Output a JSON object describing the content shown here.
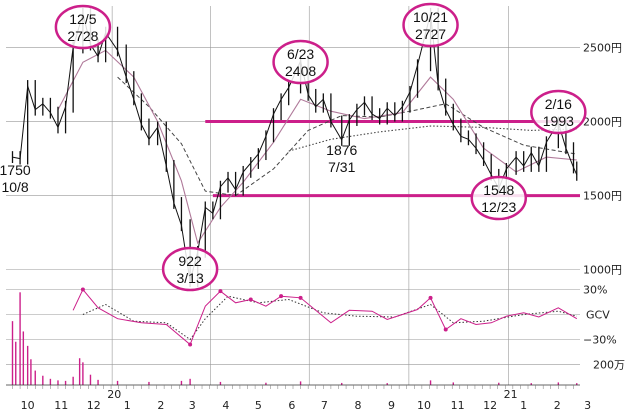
{
  "chart_data": {
    "type": "line",
    "title": "",
    "subtitle": "",
    "colors": {
      "accent": "#cc1f8a",
      "price": "#111111",
      "ma_short": "#b07a9a",
      "ma_mid": "#444444",
      "ma_long": "#444444",
      "grid": "#999999"
    },
    "price_panel": {
      "y_ticks": [
        1000,
        1500,
        2000,
        2500
      ],
      "y_tick_labels": [
        "1000円",
        "1500円",
        "2000円",
        "2500円"
      ],
      "ylim": [
        930,
        2780
      ],
      "horizontal_levels": [
        {
          "name": "resistance",
          "value": 2000
        },
        {
          "name": "support",
          "value": 1500
        }
      ],
      "annotations": [
        {
          "id": "ann-1205",
          "date_label": "12/5",
          "value_label": "2728",
          "date": "2019-12-05",
          "value": 2728,
          "circled": true
        },
        {
          "id": "ann-0623",
          "date_label": "6/23",
          "value_label": "2408",
          "date": "2020-06-23",
          "value": 2408,
          "circled": true
        },
        {
          "id": "ann-1021",
          "date_label": "10/21",
          "value_label": "2727",
          "date": "2020-10-21",
          "value": 2727,
          "circled": true
        },
        {
          "id": "ann-0216",
          "date_label": "2/16",
          "value_label": "1993",
          "date": "2021-02-16",
          "value": 1993,
          "circled": true
        },
        {
          "id": "ann-0313",
          "date_label": "922",
          "value_label": "3/13",
          "date": "2020-03-13",
          "value": 922,
          "circled": true
        },
        {
          "id": "ann-1223",
          "date_label": "1548",
          "value_label": "12/23",
          "date": "2020-12-23",
          "value": 1548,
          "circled": true
        },
        {
          "id": "ann-1008",
          "date_label": "1750",
          "value_label": "10/8",
          "date": "2019-10-08",
          "value": 1750,
          "circled": false
        },
        {
          "id": "ann-0731",
          "date_label": "1876",
          "value_label": "7/31",
          "date": "2020-07-31",
          "value": 1876,
          "circled": false
        }
      ],
      "price_series": [
        [
          "2019-10-01",
          1760
        ],
        [
          "2019-10-08",
          1750
        ],
        [
          "2019-10-15",
          2240
        ],
        [
          "2019-10-22",
          2080
        ],
        [
          "2019-10-29",
          2120
        ],
        [
          "2019-11-05",
          2060
        ],
        [
          "2019-11-12",
          1960
        ],
        [
          "2019-11-19",
          2100
        ],
        [
          "2019-11-26",
          2500
        ],
        [
          "2019-12-05",
          2728
        ],
        [
          "2019-12-12",
          2520
        ],
        [
          "2019-12-19",
          2440
        ],
        [
          "2019-12-26",
          2600
        ],
        [
          "2020-01-06",
          2480
        ],
        [
          "2020-01-14",
          2300
        ],
        [
          "2020-01-21",
          2150
        ],
        [
          "2020-01-28",
          1980
        ],
        [
          "2020-02-04",
          1880
        ],
        [
          "2020-02-12",
          1960
        ],
        [
          "2020-02-20",
          1700
        ],
        [
          "2020-02-27",
          1450
        ],
        [
          "2020-03-05",
          1300
        ],
        [
          "2020-03-13",
          922
        ],
        [
          "2020-03-20",
          1120
        ],
        [
          "2020-03-27",
          1420
        ],
        [
          "2020-04-03",
          1380
        ],
        [
          "2020-04-10",
          1560
        ],
        [
          "2020-04-17",
          1620
        ],
        [
          "2020-04-24",
          1540
        ],
        [
          "2020-05-01",
          1660
        ],
        [
          "2020-05-08",
          1720
        ],
        [
          "2020-05-15",
          1780
        ],
        [
          "2020-05-22",
          1900
        ],
        [
          "2020-05-29",
          2050
        ],
        [
          "2020-06-05",
          2150
        ],
        [
          "2020-06-12",
          2230
        ],
        [
          "2020-06-23",
          2408
        ],
        [
          "2020-06-30",
          2180
        ],
        [
          "2020-07-07",
          2100
        ],
        [
          "2020-07-14",
          2150
        ],
        [
          "2020-07-21",
          2000
        ],
        [
          "2020-07-31",
          1876
        ],
        [
          "2020-08-07",
          2010
        ],
        [
          "2020-08-14",
          2080
        ],
        [
          "2020-08-21",
          2130
        ],
        [
          "2020-08-28",
          2050
        ],
        [
          "2020-09-04",
          2020
        ],
        [
          "2020-09-11",
          2090
        ],
        [
          "2020-09-18",
          2040
        ],
        [
          "2020-09-25",
          2100
        ],
        [
          "2020-10-02",
          2200
        ],
        [
          "2020-10-09",
          2380
        ],
        [
          "2020-10-21",
          2727
        ],
        [
          "2020-10-28",
          2250
        ],
        [
          "2020-11-04",
          2080
        ],
        [
          "2020-11-11",
          1980
        ],
        [
          "2020-11-18",
          1900
        ],
        [
          "2020-11-25",
          1880
        ],
        [
          "2020-12-02",
          1820
        ],
        [
          "2020-12-09",
          1740
        ],
        [
          "2020-12-16",
          1640
        ],
        [
          "2020-12-23",
          1548
        ],
        [
          "2020-12-30",
          1680
        ],
        [
          "2021-01-08",
          1760
        ],
        [
          "2021-01-15",
          1700
        ],
        [
          "2021-01-22",
          1790
        ],
        [
          "2021-01-29",
          1700
        ],
        [
          "2021-02-05",
          1860
        ],
        [
          "2021-02-16",
          1993
        ],
        [
          "2021-02-23",
          1820
        ],
        [
          "2021-03-02",
          1690
        ],
        [
          "2021-03-05",
          1640
        ]
      ],
      "ma_short": [
        [
          "2019-11-12",
          2080
        ],
        [
          "2019-12-05",
          2400
        ],
        [
          "2019-12-26",
          2480
        ],
        [
          "2020-01-21",
          2300
        ],
        [
          "2020-02-12",
          2000
        ],
        [
          "2020-03-05",
          1600
        ],
        [
          "2020-03-20",
          1180
        ],
        [
          "2020-04-10",
          1420
        ],
        [
          "2020-05-01",
          1590
        ],
        [
          "2020-05-29",
          1860
        ],
        [
          "2020-06-23",
          2150
        ],
        [
          "2020-07-21",
          2070
        ],
        [
          "2020-08-21",
          2020
        ],
        [
          "2020-09-25",
          2060
        ],
        [
          "2020-10-21",
          2300
        ],
        [
          "2020-11-11",
          2150
        ],
        [
          "2020-12-09",
          1820
        ],
        [
          "2021-01-08",
          1660
        ],
        [
          "2021-02-05",
          1760
        ],
        [
          "2021-03-05",
          1740
        ]
      ],
      "ma_mid": [
        [
          "2020-01-06",
          2300
        ],
        [
          "2020-02-04",
          2100
        ],
        [
          "2020-03-05",
          1850
        ],
        [
          "2020-03-27",
          1530
        ],
        [
          "2020-04-24",
          1500
        ],
        [
          "2020-05-29",
          1680
        ],
        [
          "2020-06-30",
          1940
        ],
        [
          "2020-07-31",
          2040
        ],
        [
          "2020-09-04",
          2030
        ],
        [
          "2020-10-09",
          2080
        ],
        [
          "2020-11-04",
          2120
        ],
        [
          "2020-12-09",
          1960
        ],
        [
          "2021-01-15",
          1840
        ],
        [
          "2021-03-05",
          1780
        ]
      ],
      "ma_long": [
        [
          "2020-06-12",
          1800
        ],
        [
          "2020-07-21",
          1880
        ],
        [
          "2020-09-04",
          1930
        ],
        [
          "2020-10-21",
          1970
        ],
        [
          "2020-12-09",
          1960
        ],
        [
          "2021-01-22",
          1940
        ],
        [
          "2021-03-05",
          1950
        ]
      ]
    },
    "gcv_panel": {
      "label": "GCV",
      "y_ticks": [
        30,
        0,
        -30
      ],
      "y_tick_labels": [
        "30%",
        "GCV",
        "−30%"
      ],
      "ylim": [
        -45,
        45
      ],
      "gcv_series": [
        [
          "2019-11-26",
          5
        ],
        [
          "2019-12-05",
          30
        ],
        [
          "2019-12-19",
          8
        ],
        [
          "2020-01-06",
          -5
        ],
        [
          "2020-01-28",
          -10
        ],
        [
          "2020-02-20",
          -12
        ],
        [
          "2020-03-13",
          -36
        ],
        [
          "2020-03-27",
          10
        ],
        [
          "2020-04-10",
          28
        ],
        [
          "2020-04-24",
          14
        ],
        [
          "2020-05-08",
          18
        ],
        [
          "2020-05-22",
          10
        ],
        [
          "2020-06-05",
          22
        ],
        [
          "2020-06-23",
          20
        ],
        [
          "2020-07-07",
          5
        ],
        [
          "2020-07-21",
          -10
        ],
        [
          "2020-08-07",
          5
        ],
        [
          "2020-08-28",
          4
        ],
        [
          "2020-09-11",
          -6
        ],
        [
          "2020-09-25",
          0
        ],
        [
          "2020-10-09",
          6
        ],
        [
          "2020-10-21",
          20
        ],
        [
          "2020-11-04",
          -18
        ],
        [
          "2020-11-18",
          -5
        ],
        [
          "2020-12-02",
          -12
        ],
        [
          "2020-12-16",
          -10
        ],
        [
          "2020-12-30",
          -2
        ],
        [
          "2021-01-15",
          2
        ],
        [
          "2021-01-29",
          -3
        ],
        [
          "2021-02-16",
          8
        ],
        [
          "2021-03-05",
          -5
        ]
      ],
      "gcv_signal": [
        [
          "2019-12-05",
          0
        ],
        [
          "2019-12-26",
          12
        ],
        [
          "2020-01-21",
          -8
        ],
        [
          "2020-02-20",
          -10
        ],
        [
          "2020-03-13",
          -30
        ],
        [
          "2020-03-27",
          -5
        ],
        [
          "2020-04-17",
          22
        ],
        [
          "2020-05-15",
          14
        ],
        [
          "2020-06-12",
          18
        ],
        [
          "2020-07-14",
          2
        ],
        [
          "2020-08-14",
          -2
        ],
        [
          "2020-09-18",
          -3
        ],
        [
          "2020-10-21",
          12
        ],
        [
          "2020-11-11",
          -10
        ],
        [
          "2020-12-09",
          -8
        ],
        [
          "2021-01-15",
          0
        ],
        [
          "2021-02-16",
          4
        ],
        [
          "2021-03-05",
          -2
        ]
      ]
    },
    "volume_panel": {
      "y_ticks": [
        200
      ],
      "y_tick_labels": [
        "200万"
      ],
      "ylim": [
        0,
        1000
      ],
      "volume_series": [
        [
          "2019-10-01",
          620
        ],
        [
          "2019-10-04",
          420
        ],
        [
          "2019-10-08",
          900
        ],
        [
          "2019-10-11",
          520
        ],
        [
          "2019-10-15",
          380
        ],
        [
          "2019-10-18",
          250
        ],
        [
          "2019-10-22",
          140
        ],
        [
          "2019-10-29",
          90
        ],
        [
          "2019-11-05",
          60
        ],
        [
          "2019-11-12",
          45
        ],
        [
          "2019-11-19",
          40
        ],
        [
          "2019-11-26",
          80
        ],
        [
          "2019-12-02",
          260
        ],
        [
          "2019-12-05",
          220
        ],
        [
          "2019-12-12",
          100
        ],
        [
          "2019-12-19",
          50
        ],
        [
          "2020-01-06",
          40
        ],
        [
          "2020-02-04",
          30
        ],
        [
          "2020-03-05",
          40
        ],
        [
          "2020-03-13",
          60
        ],
        [
          "2020-04-10",
          30
        ],
        [
          "2020-05-22",
          22
        ],
        [
          "2020-06-23",
          35
        ],
        [
          "2020-07-31",
          20
        ],
        [
          "2020-09-11",
          18
        ],
        [
          "2020-10-21",
          45
        ],
        [
          "2020-11-11",
          25
        ],
        [
          "2020-12-23",
          22
        ],
        [
          "2021-01-22",
          18
        ],
        [
          "2021-02-16",
          25
        ],
        [
          "2021-03-05",
          18
        ]
      ]
    },
    "x_axis": {
      "start": "2019-09-25",
      "end": "2021-03-08",
      "month_ticks": [
        {
          "date": "2019-10-15",
          "label": "10"
        },
        {
          "date": "2019-11-15",
          "label": "11"
        },
        {
          "date": "2019-12-15",
          "label": "12"
        },
        {
          "date": "2020-01-15",
          "label": "1"
        },
        {
          "date": "2020-02-15",
          "label": "2"
        },
        {
          "date": "2020-03-15",
          "label": "3"
        },
        {
          "date": "2020-04-15",
          "label": "4"
        },
        {
          "date": "2020-05-15",
          "label": "5"
        },
        {
          "date": "2020-06-15",
          "label": "6"
        },
        {
          "date": "2020-07-15",
          "label": "7"
        },
        {
          "date": "2020-08-15",
          "label": "8"
        },
        {
          "date": "2020-09-15",
          "label": "9"
        },
        {
          "date": "2020-10-15",
          "label": "10"
        },
        {
          "date": "2020-11-15",
          "label": "11"
        },
        {
          "date": "2020-12-15",
          "label": "12"
        },
        {
          "date": "2021-01-15",
          "label": "1"
        },
        {
          "date": "2021-02-15",
          "label": "2"
        },
        {
          "date": "2021-03-15",
          "label": "3"
        }
      ],
      "year_labels": [
        {
          "date": "2020-01-03",
          "label": "20"
        },
        {
          "date": "2021-01-03",
          "label": "21"
        }
      ],
      "vertical_gridlines": [
        "2020-01-01",
        "2020-04-01",
        "2020-07-01",
        "2020-10-01",
        "2021-01-01"
      ]
    }
  }
}
